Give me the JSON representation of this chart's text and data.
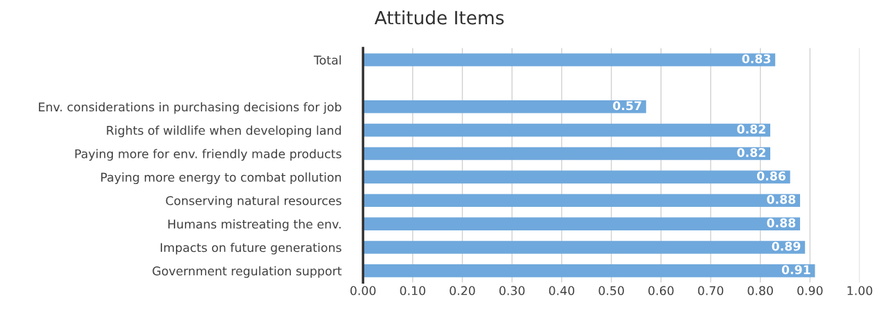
{
  "chart_data": {
    "type": "bar",
    "orientation": "horizontal",
    "title": "Attitude Items",
    "categories": [
      "Total",
      null,
      "Env. considerations in purchasing decisions for job",
      "Rights of wildlife when developing land",
      "Paying more for env. friendly made products",
      "Paying more energy to combat pollution",
      "Conserving natural resources",
      "Humans mistreating the env.",
      "Impacts on future generations",
      "Government regulation support"
    ],
    "values": [
      0.83,
      null,
      0.57,
      0.82,
      0.82,
      0.86,
      0.88,
      0.88,
      0.89,
      0.91
    ],
    "color": "#6fa8dc",
    "xlim": [
      0,
      1
    ],
    "xticks": [
      {
        "value": 0,
        "label": "0.00"
      },
      {
        "value": 0.1,
        "label": "0.10"
      },
      {
        "value": 0.2,
        "label": "0.20"
      },
      {
        "value": 0.3,
        "label": "0.30"
      },
      {
        "value": 0.4,
        "label": "0.40"
      },
      {
        "value": 0.5,
        "label": "0.50"
      },
      {
        "value": 0.6,
        "label": "0.60"
      },
      {
        "value": 0.7,
        "label": "0.70"
      },
      {
        "value": 0.8,
        "label": "0.80"
      },
      {
        "value": 0.9,
        "label": "0.90"
      },
      {
        "value": 1,
        "label": "1.00"
      }
    ],
    "grid": "x",
    "data_labels": true,
    "legend": false
  }
}
